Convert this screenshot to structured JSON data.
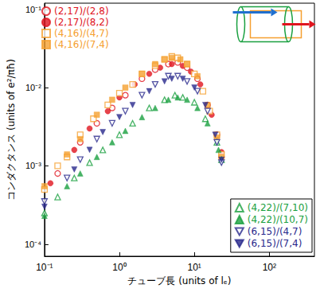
{
  "chart_data": {
    "type": "scatter",
    "x_label": "チューブ長 (units of lₑ)",
    "y_label": "コンダクタンス (units of e²/πħ)",
    "log": true,
    "grid": false,
    "xlim": [
      0.1,
      400
    ],
    "xticks": [
      {
        "value": 0.1,
        "label": "10⁻¹"
      },
      {
        "value": 1,
        "label": "10⁰"
      },
      {
        "value": 10,
        "label": "10¹"
      },
      {
        "value": 100,
        "label": "10²"
      }
    ],
    "ylim": [
      7e-05,
      0.12
    ],
    "yticks": [
      {
        "value": 0.0001,
        "label": "10⁻⁴"
      },
      {
        "value": 0.001,
        "label": "10⁻³"
      },
      {
        "value": 0.01,
        "label": "10⁻²"
      },
      {
        "value": 0.1,
        "label": "10⁻¹"
      }
    ],
    "series": [
      {
        "name": "(2,17)/(2,8)",
        "color": "#e0141e",
        "marker": "circle_open",
        "legend": "upper left",
        "values": [
          [
            0.15,
            0.0008
          ],
          [
            0.3,
            0.002
          ],
          [
            0.5,
            0.0035
          ],
          [
            0.8,
            0.0055
          ],
          [
            1.2,
            0.008
          ],
          [
            2,
            0.013
          ],
          [
            3,
            0.017
          ],
          [
            4.5,
            0.02
          ],
          [
            6,
            0.021
          ],
          [
            8,
            0.018
          ],
          [
            11,
            0.013
          ],
          [
            15,
            0.006
          ],
          [
            20,
            0.0025
          ],
          [
            23,
            0.0013
          ]
        ]
      },
      {
        "name": "(2,17)/(8,2)",
        "color": "#e0141e",
        "marker": "circle",
        "legend": "upper left",
        "values": [
          [
            0.12,
            0.0006
          ],
          [
            0.25,
            0.0016
          ],
          [
            0.4,
            0.003
          ],
          [
            0.7,
            0.005
          ],
          [
            1.0,
            0.0075
          ],
          [
            1.6,
            0.011
          ],
          [
            2.5,
            0.015
          ],
          [
            3.5,
            0.018
          ],
          [
            5,
            0.02
          ],
          [
            7,
            0.019
          ],
          [
            9,
            0.016
          ],
          [
            12,
            0.011
          ],
          [
            17,
            0.0045
          ],
          [
            23,
            0.0015
          ]
        ]
      },
      {
        "name": "(4,16)/(4,7)",
        "color": "#f5a030",
        "marker": "square_open",
        "legend": "upper left",
        "values": [
          [
            0.1,
            0.0005
          ],
          [
            0.15,
            0.001
          ],
          [
            0.2,
            0.0013
          ],
          [
            0.3,
            0.0025
          ],
          [
            0.45,
            0.004
          ],
          [
            0.7,
            0.006
          ],
          [
            1.0,
            0.0085
          ],
          [
            1.5,
            0.011
          ],
          [
            2,
            0.015
          ],
          [
            3,
            0.019
          ],
          [
            4,
            0.023
          ],
          [
            5,
            0.025
          ],
          [
            6,
            0.024
          ],
          [
            8,
            0.02
          ],
          [
            10,
            0.015
          ],
          [
            13,
            0.009
          ],
          [
            16,
            0.005
          ],
          [
            20,
            0.0025
          ],
          [
            23,
            0.0014
          ]
        ]
      },
      {
        "name": "(4,16)/(7,4)",
        "color": "#f5a030",
        "marker": "square",
        "legend": "upper left",
        "values": [
          [
            0.1,
            0.00055
          ],
          [
            0.2,
            0.0014
          ],
          [
            0.3,
            0.0022
          ],
          [
            0.5,
            0.0045
          ],
          [
            0.8,
            0.007
          ],
          [
            1.2,
            0.01
          ],
          [
            2,
            0.015
          ],
          [
            3,
            0.02
          ],
          [
            4,
            0.023
          ],
          [
            5,
            0.024
          ],
          [
            6.5,
            0.023
          ],
          [
            8,
            0.02
          ],
          [
            11,
            0.014
          ],
          [
            15,
            0.006
          ],
          [
            20,
            0.0023
          ],
          [
            23,
            0.0013
          ]
        ]
      },
      {
        "name": "(4,22)/(7,10)",
        "color": "#1aa040",
        "marker": "triangle_open",
        "legend": "lower right",
        "values": [
          [
            0.1,
            0.00025
          ],
          [
            0.15,
            0.0004
          ],
          [
            0.25,
            0.0007
          ],
          [
            0.4,
            0.0011
          ],
          [
            0.6,
            0.0016
          ],
          [
            1.0,
            0.0025
          ],
          [
            1.5,
            0.0035
          ],
          [
            2.5,
            0.0055
          ],
          [
            4,
            0.007
          ],
          [
            5.5,
            0.008
          ],
          [
            7,
            0.0075
          ],
          [
            10,
            0.0065
          ],
          [
            14,
            0.004
          ],
          [
            20,
            0.002
          ],
          [
            23,
            0.0012
          ]
        ]
      },
      {
        "name": "(4,22)/(10,7)",
        "color": "#1aa040",
        "marker": "triangle",
        "legend": "lower right",
        "values": [
          [
            0.1,
            0.00023
          ],
          [
            0.2,
            0.00055
          ],
          [
            0.3,
            0.0008
          ],
          [
            0.5,
            0.0013
          ],
          [
            0.8,
            0.002
          ],
          [
            1.2,
            0.0028
          ],
          [
            2,
            0.0042
          ],
          [
            3,
            0.0055
          ],
          [
            4.5,
            0.007
          ],
          [
            6,
            0.0075
          ],
          [
            8,
            0.007
          ],
          [
            11,
            0.0055
          ],
          [
            15,
            0.0035
          ],
          [
            21,
            0.0016
          ]
        ]
      },
      {
        "name": "(6,15)/(4,7)",
        "color": "#28288c",
        "marker": "triangle_down_open",
        "legend": "lower right",
        "values": [
          [
            0.1,
            0.00035
          ],
          [
            0.2,
            0.0007
          ],
          [
            0.3,
            0.0012
          ],
          [
            0.5,
            0.0022
          ],
          [
            0.8,
            0.0035
          ],
          [
            1.2,
            0.005
          ],
          [
            2,
            0.008
          ],
          [
            3,
            0.011
          ],
          [
            4.5,
            0.014
          ],
          [
            6,
            0.014
          ],
          [
            8,
            0.012
          ],
          [
            11,
            0.009
          ],
          [
            15,
            0.005
          ],
          [
            20,
            0.002
          ],
          [
            23,
            0.0011
          ]
        ]
      },
      {
        "name": "(6,15)/(7,4)",
        "color": "#28288c",
        "marker": "triangle_down",
        "legend": "lower right",
        "values": [
          [
            0.1,
            0.0003
          ],
          [
            0.25,
            0.0009
          ],
          [
            0.4,
            0.0016
          ],
          [
            0.6,
            0.0027
          ],
          [
            1.0,
            0.0042
          ],
          [
            1.5,
            0.006
          ],
          [
            2.5,
            0.009
          ],
          [
            4,
            0.012
          ],
          [
            5,
            0.013
          ],
          [
            7,
            0.013
          ],
          [
            10,
            0.01
          ],
          [
            14,
            0.006
          ],
          [
            19,
            0.0025
          ],
          [
            23,
            0.0012
          ]
        ]
      }
    ]
  }
}
